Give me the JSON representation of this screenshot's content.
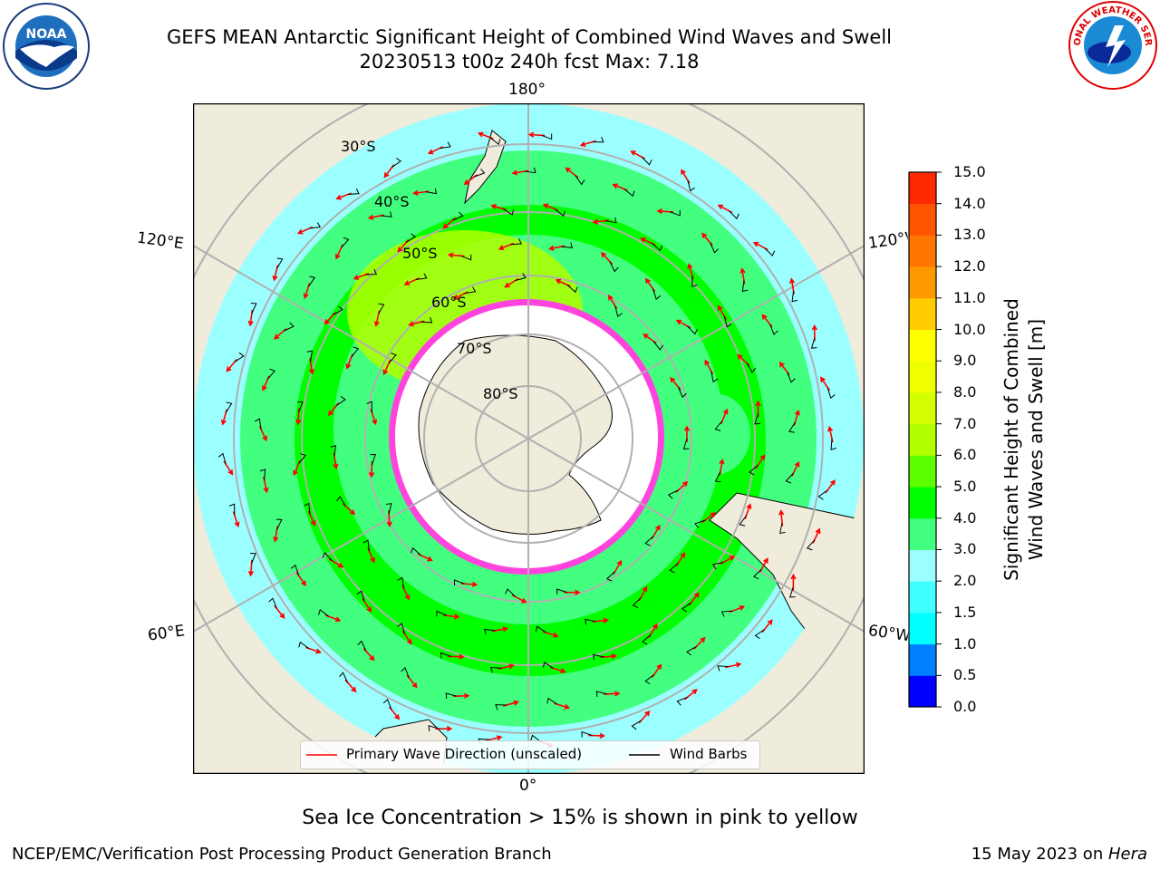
{
  "title": {
    "line1": "GEFS MEAN Antarctic Significant Height of Combined Wind Waves and Swell",
    "line2": "20230513 t00z 240h fcst   Max: 7.18"
  },
  "map": {
    "projection": "south-polar-stereographic",
    "lat_labels": [
      "30°S",
      "40°S",
      "50°S",
      "60°S",
      "70°S",
      "80°S"
    ],
    "lon_labels": {
      "top": "180°",
      "bottom": "0°",
      "left_upper": "120°E",
      "left_lower": "60°E",
      "right_upper": "120°W",
      "right_lower": "60°W"
    },
    "colors": {
      "land": "#efecdc",
      "ice_edge": "#ff33cc",
      "ice_interior": "#ffffff",
      "arrow": "#ff0000",
      "barb": "#000000",
      "grid": "#b0b0b0"
    }
  },
  "legend": {
    "wave_label": "Primary Wave Direction (unscaled)",
    "barb_label": "Wind Barbs"
  },
  "colorbar": {
    "label_line1": "Significant Height of Combined",
    "label_line2": "Wind Waves and Swell [m]",
    "ticks": [
      "0.0",
      "0.5",
      "1.0",
      "1.5",
      "2.0",
      "3.0",
      "4.0",
      "5.0",
      "6.0",
      "7.0",
      "8.0",
      "9.0",
      "10.0",
      "11.0",
      "12.0",
      "13.0",
      "14.0",
      "15.0"
    ],
    "colors": [
      "#0000ff",
      "#0080ff",
      "#00ffff",
      "#40ffff",
      "#9cffff",
      "#43ff80",
      "#00ff00",
      "#5bff00",
      "#b2ff00",
      "#d4ff00",
      "#f0ff00",
      "#ffff00",
      "#ffcc00",
      "#ff9900",
      "#ff7700",
      "#ff5500",
      "#ff2a00",
      "#ff0000"
    ]
  },
  "note": "Sea Ice Concentration > 15% is shown in pink to yellow",
  "footer": {
    "left": "NCEP/EMC/Verification Post Processing Product Generation Branch",
    "right_date": "15 May 2023 on ",
    "right_host": "Hera"
  },
  "logos": {
    "noaa": "NOAA",
    "nws": "NATIONAL WEATHER SERVICE"
  }
}
